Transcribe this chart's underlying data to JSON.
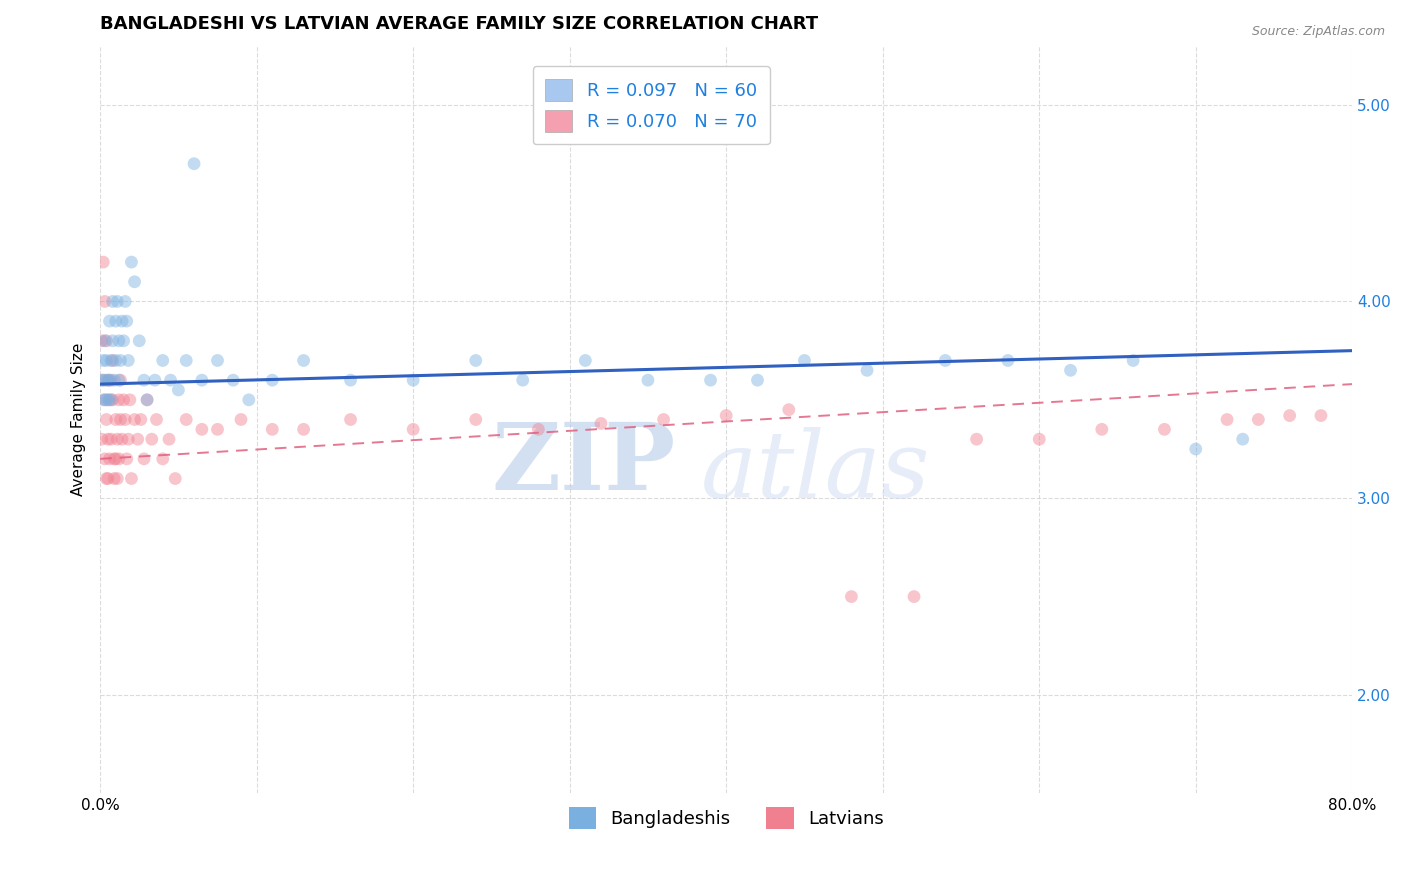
{
  "title": "BANGLADESHI VS LATVIAN AVERAGE FAMILY SIZE CORRELATION CHART",
  "source": "Source: ZipAtlas.com",
  "ylabel": "Average Family Size",
  "xlim": [
    0.0,
    0.8
  ],
  "ylim": [
    1.5,
    5.3
  ],
  "yticks": [
    2.0,
    3.0,
    4.0,
    5.0
  ],
  "xticks": [
    0.0,
    0.1,
    0.2,
    0.3,
    0.4,
    0.5,
    0.6,
    0.7,
    0.8
  ],
  "xtick_labels": [
    "0.0%",
    "",
    "",
    "",
    "",
    "",
    "",
    "",
    "80.0%"
  ],
  "legend_entries": [
    {
      "label": "R = 0.097   N = 60",
      "color": "#a8c8f0"
    },
    {
      "label": "R = 0.070   N = 70",
      "color": "#f4a0b0"
    }
  ],
  "legend_labels_bottom": [
    "Bangladeshis",
    "Latvians"
  ],
  "blue_color": "#7ab0e0",
  "pink_color": "#f08090",
  "blue_line_color": "#3060c0",
  "pink_line_color": "#e06080",
  "watermark_zip": "ZIP",
  "watermark_atlas": "atlas",
  "background_color": "#ffffff",
  "grid_color": "#cccccc",
  "title_fontsize": 13,
  "axis_label_fontsize": 11,
  "tick_fontsize": 11,
  "legend_fontsize": 13,
  "scatter_size": 85,
  "scatter_alpha": 0.45,
  "line_width": 2.2,
  "blue_trend_x": [
    0.0,
    0.8
  ],
  "blue_trend_y": [
    3.58,
    3.75
  ],
  "pink_trend_x": [
    0.0,
    0.8
  ],
  "pink_trend_y": [
    3.2,
    3.58
  ],
  "blue_scatter_x": [
    0.001,
    0.002,
    0.002,
    0.003,
    0.003,
    0.004,
    0.004,
    0.005,
    0.005,
    0.006,
    0.006,
    0.007,
    0.007,
    0.008,
    0.008,
    0.009,
    0.01,
    0.01,
    0.011,
    0.012,
    0.012,
    0.013,
    0.014,
    0.015,
    0.016,
    0.017,
    0.018,
    0.02,
    0.022,
    0.025,
    0.028,
    0.03,
    0.035,
    0.04,
    0.045,
    0.05,
    0.055,
    0.06,
    0.065,
    0.075,
    0.085,
    0.095,
    0.11,
    0.13,
    0.16,
    0.2,
    0.24,
    0.27,
    0.31,
    0.35,
    0.39,
    0.42,
    0.45,
    0.49,
    0.54,
    0.58,
    0.62,
    0.66,
    0.7,
    0.73
  ],
  "blue_scatter_y": [
    3.6,
    3.7,
    3.5,
    3.8,
    3.6,
    3.5,
    3.7,
    3.6,
    3.5,
    3.6,
    3.9,
    3.7,
    3.5,
    4.0,
    3.8,
    3.6,
    3.7,
    3.9,
    4.0,
    3.8,
    3.6,
    3.7,
    3.9,
    3.8,
    4.0,
    3.9,
    3.7,
    4.2,
    4.1,
    3.8,
    3.6,
    3.5,
    3.6,
    3.7,
    3.6,
    3.55,
    3.7,
    4.7,
    3.6,
    3.7,
    3.6,
    3.5,
    3.6,
    3.7,
    3.6,
    3.6,
    3.7,
    3.6,
    3.7,
    3.6,
    3.6,
    3.6,
    3.7,
    3.65,
    3.7,
    3.7,
    3.65,
    3.7,
    3.25,
    3.3
  ],
  "pink_scatter_x": [
    0.001,
    0.001,
    0.002,
    0.002,
    0.003,
    0.003,
    0.003,
    0.004,
    0.004,
    0.004,
    0.005,
    0.005,
    0.005,
    0.006,
    0.006,
    0.007,
    0.007,
    0.008,
    0.008,
    0.009,
    0.009,
    0.01,
    0.01,
    0.011,
    0.011,
    0.012,
    0.012,
    0.013,
    0.013,
    0.014,
    0.015,
    0.016,
    0.017,
    0.018,
    0.019,
    0.02,
    0.022,
    0.024,
    0.026,
    0.028,
    0.03,
    0.033,
    0.036,
    0.04,
    0.044,
    0.048,
    0.055,
    0.065,
    0.075,
    0.09,
    0.11,
    0.13,
    0.16,
    0.2,
    0.24,
    0.28,
    0.32,
    0.36,
    0.4,
    0.44,
    0.48,
    0.52,
    0.56,
    0.6,
    0.64,
    0.68,
    0.72,
    0.74,
    0.76,
    0.78
  ],
  "pink_scatter_y": [
    3.8,
    3.3,
    4.2,
    3.6,
    4.0,
    3.5,
    3.2,
    3.8,
    3.4,
    3.1,
    3.6,
    3.3,
    3.1,
    3.5,
    3.2,
    3.6,
    3.3,
    3.5,
    3.7,
    3.2,
    3.1,
    3.4,
    3.2,
    3.3,
    3.1,
    3.5,
    3.2,
    3.4,
    3.6,
    3.3,
    3.5,
    3.4,
    3.2,
    3.3,
    3.5,
    3.1,
    3.4,
    3.3,
    3.4,
    3.2,
    3.5,
    3.3,
    3.4,
    3.2,
    3.3,
    3.1,
    3.4,
    3.35,
    3.35,
    3.4,
    3.35,
    3.35,
    3.4,
    3.35,
    3.4,
    3.35,
    3.38,
    3.4,
    3.42,
    3.45,
    2.5,
    2.5,
    3.3,
    3.3,
    3.35,
    3.35,
    3.4,
    3.4,
    3.42,
    3.42
  ]
}
